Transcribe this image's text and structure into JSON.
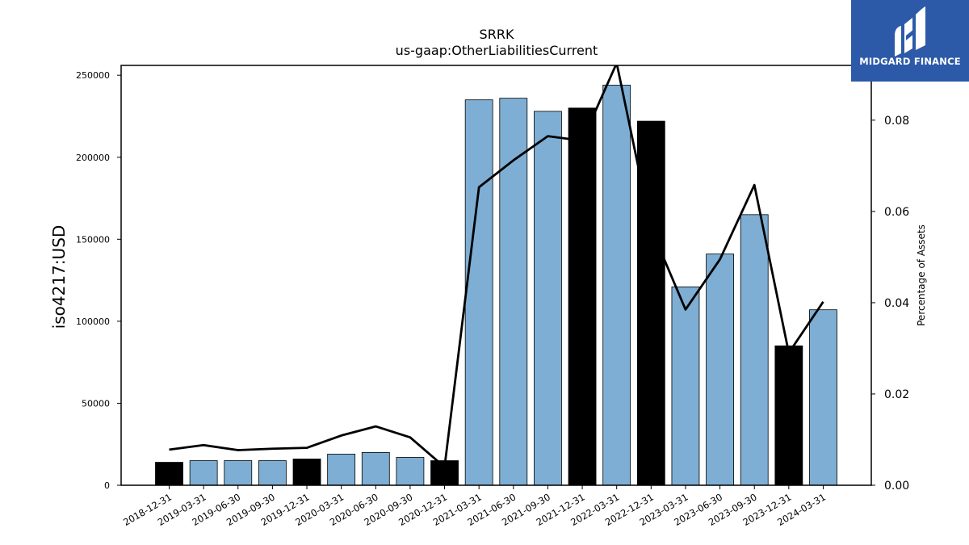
{
  "chart_data": {
    "type": "bar",
    "title": "SRRK",
    "subtitle": "us-gaap:OtherLiabilitiesCurrent",
    "ylabel": "iso4217:USD",
    "y2label": "Percentage of Assets",
    "ylim": [
      0,
      256000
    ],
    "y2lim": [
      0,
      0.092
    ],
    "yticks": [
      0,
      50000,
      100000,
      150000,
      200000,
      250000
    ],
    "y2ticks": [
      "0.00",
      "0.02",
      "0.04",
      "0.06",
      "0.08"
    ],
    "categories": [
      "2018-12-31",
      "2019-03-31",
      "2019-06-30",
      "2019-09-30",
      "2019-12-31",
      "2020-03-31",
      "2020-06-30",
      "2020-09-30",
      "2020-12-31",
      "2021-03-31",
      "2021-06-30",
      "2021-09-30",
      "2021-12-31",
      "2022-03-31",
      "2022-12-31",
      "2023-03-31",
      "2023-06-30",
      "2023-09-30",
      "2023-12-31",
      "2024-03-31"
    ],
    "series": [
      {
        "values": [
          14000,
          15000,
          15000,
          15000,
          16000,
          19000,
          20000,
          17000,
          15000,
          235000,
          236000,
          228000,
          230000,
          244000,
          222000,
          121000,
          141000,
          165000,
          85000,
          107000
        ],
        "colors": [
          "#000000",
          "#7eaed3",
          "#7eaed3",
          "#7eaed3",
          "#000000",
          "#7eaed3",
          "#7eaed3",
          "#7eaed3",
          "#000000",
          "#7eaed3",
          "#7eaed3",
          "#7eaed3",
          "#000000",
          "#7eaed3",
          "#000000",
          "#7eaed3",
          "#7eaed3",
          "#7eaed3",
          "#000000",
          "#7eaed3"
        ]
      },
      {
        "axis": "right",
        "values": [
          0.0078,
          0.0088,
          0.0077,
          0.008,
          0.0082,
          0.0109,
          0.0129,
          0.0105,
          0.004,
          0.0653,
          0.0712,
          0.0765,
          0.0755,
          0.0925,
          0.0563,
          0.0385,
          0.0495,
          0.0658,
          0.029,
          0.0402
        ],
        "color": "#000000"
      }
    ],
    "grid": false
  },
  "logo": {
    "text": "MIDGARD FINANCE"
  }
}
